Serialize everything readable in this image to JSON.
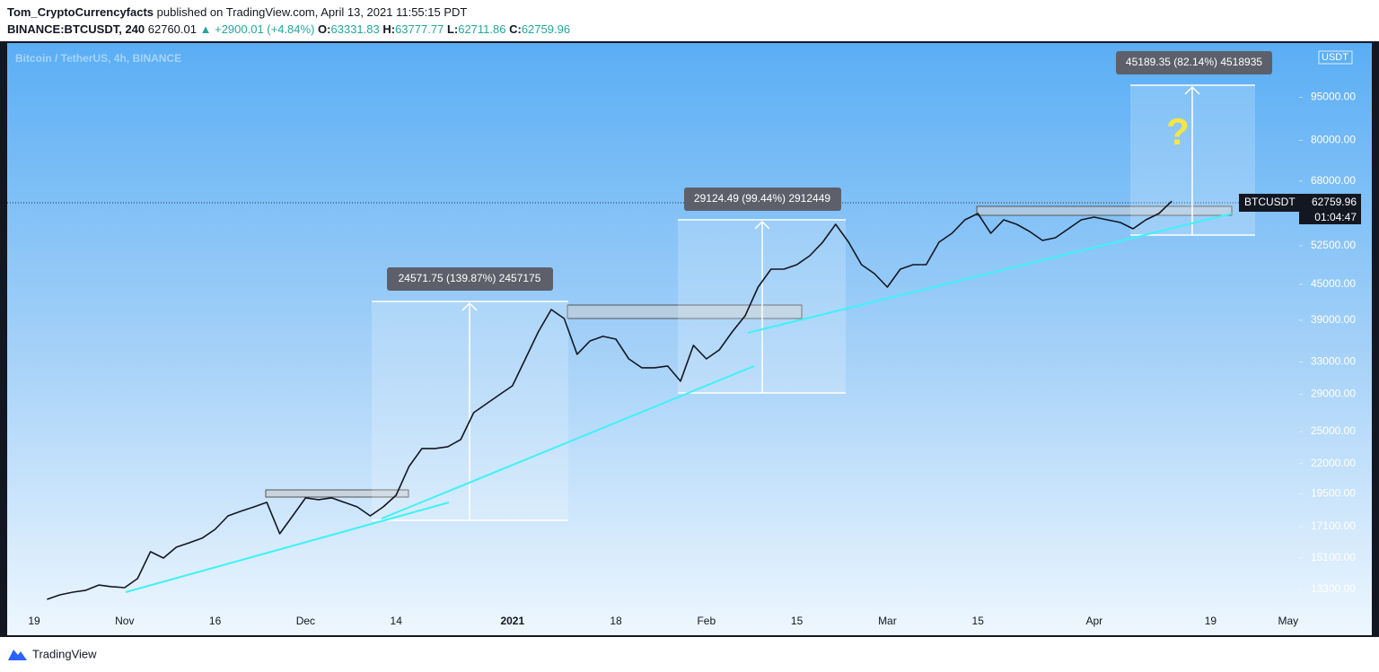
{
  "header": {
    "author": "Tom_CryptoCurrencyfacts",
    "published": "published on TradingView.com, April 13, 2021 11:55:15 PDT",
    "symbol": "BINANCE:BTCUSDT, 240",
    "last": "62760.01",
    "change": "▲ +2900.01 (+4.84%)",
    "open_label": "O:",
    "open": "63331.83",
    "high_label": "H:",
    "high": "63777.77",
    "low_label": "L:",
    "low": "62711.86",
    "close_label": "C:",
    "close": "62759.96"
  },
  "chart_data": {
    "type": "line",
    "subtitle": "Bitcoin / TetherUS, 4h, BINANCE",
    "log_scale": true,
    "categories": [
      "19",
      null,
      null,
      null,
      null,
      null,
      null,
      "Nov",
      null,
      null,
      null,
      null,
      null,
      null,
      "16",
      null,
      null,
      null,
      null,
      null,
      null,
      "Dec",
      null,
      null,
      null,
      null,
      null,
      null,
      "14",
      null,
      null,
      null,
      null,
      null,
      null,
      null,
      null,
      "2021",
      null,
      null,
      null,
      null,
      null,
      null,
      null,
      "18",
      null,
      null,
      null,
      null,
      null,
      null,
      "Feb",
      null,
      null,
      null,
      null,
      null,
      null,
      "15",
      null,
      null,
      null,
      null,
      null,
      null,
      "Mar",
      null,
      null,
      null,
      null,
      null,
      null,
      "15",
      null,
      null,
      null,
      null,
      null,
      null,
      null,
      null,
      "Apr",
      null,
      null,
      null,
      null,
      null,
      null,
      null,
      null,
      "19",
      null,
      null,
      null,
      null,
      null,
      "May"
    ],
    "series": [
      {
        "name": "BTCUSDT",
        "color": "#131722",
        "values": [
          null,
          12790,
          13020,
          13160,
          13260,
          13540,
          13450,
          13400,
          13890,
          15470,
          15080,
          15750,
          16030,
          16330,
          16910,
          17850,
          18180,
          18500,
          18840,
          16620,
          17850,
          19180,
          19040,
          19180,
          18840,
          18500,
          17850,
          18500,
          19380,
          21740,
          23360,
          23360,
          23530,
          24210,
          26950,
          27940,
          28960,
          30010,
          33420,
          37220,
          40700,
          39270,
          34030,
          35900,
          36560,
          36160,
          33420,
          32250,
          32250,
          32480,
          30560,
          35270,
          33420,
          34640,
          37220,
          39700,
          44520,
          47830,
          47830,
          48690,
          50470,
          53260,
          57210,
          53260,
          48690,
          46980,
          44520,
          47830,
          48690,
          48690,
          53260,
          55200,
          58250,
          59730,
          55200,
          58250,
          57210,
          55600,
          53640,
          54220,
          56200,
          58250,
          58880,
          58250,
          57630,
          56200,
          58250,
          59730,
          62760,
          null,
          null,
          null,
          null,
          null,
          null,
          null,
          null,
          null
        ]
      }
    ],
    "ylim": [
      11080,
      118000
    ],
    "yticks": [
      {
        "value": 13300,
        "label": "13300.00"
      },
      {
        "value": 15100,
        "label": "15100.00"
      },
      {
        "value": 17100,
        "label": "17100.00"
      },
      {
        "value": 19500,
        "label": "19500.00"
      },
      {
        "value": 22000,
        "label": "22000.00"
      },
      {
        "value": 25000,
        "label": "25000.00"
      },
      {
        "value": 29000,
        "label": "29000.00"
      },
      {
        "value": 33000,
        "label": "33000.00"
      },
      {
        "value": 39000,
        "label": "39000.00"
      },
      {
        "value": 45000,
        "label": "45000.00"
      },
      {
        "value": 52500,
        "label": "52500.00"
      },
      {
        "value": 68000,
        "label": "68000.00"
      },
      {
        "value": 80000,
        "label": "80000.00"
      },
      {
        "value": 95000,
        "label": "95000.00"
      }
    ]
  },
  "drawings": {
    "measure_1": "24571.75 (139.87%) 2457175",
    "measure_2": "29124.49 (99.44%) 2912449",
    "measure_3": "45189.35 (82.14%) 4518935",
    "question": "?"
  },
  "price_label": {
    "symbol": "BTCUSDT",
    "price": "62759.96",
    "countdown": "01:04:47",
    "currency": "USDT"
  },
  "footer": {
    "brand": "TradingView"
  }
}
